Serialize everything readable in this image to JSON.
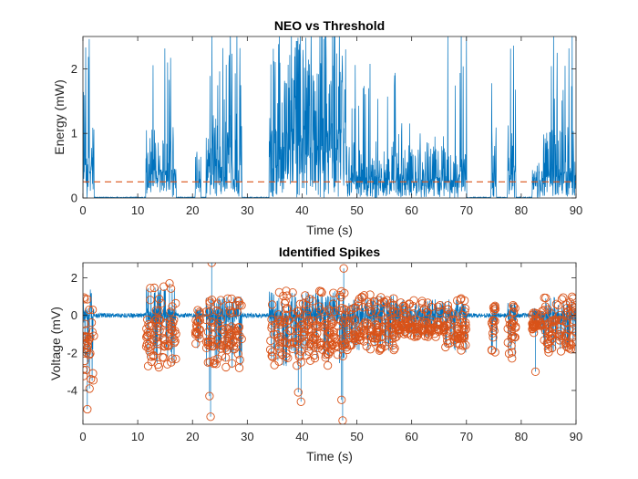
{
  "colors": {
    "signal": "#0072BD",
    "marker": "#D95319",
    "axis": "#262626"
  },
  "chart_data": [
    {
      "type": "line",
      "title": "NEO vs Threshold",
      "xlabel": "Time (s)",
      "ylabel": "Energy (mW)",
      "xlim": [
        0,
        90
      ],
      "ylim": [
        0,
        2.5
      ],
      "xticks": [
        0,
        10,
        20,
        30,
        40,
        50,
        60,
        70,
        80,
        90
      ],
      "xtick_labels": [
        "0",
        "10",
        "20",
        "30",
        "40",
        "50",
        "60",
        "70",
        "80",
        "90"
      ],
      "yticks": [
        0,
        1,
        2
      ],
      "ytick_labels": [
        "0",
        "1",
        "2"
      ],
      "grid": false,
      "threshold": {
        "y": 0.25,
        "style": "dashed"
      },
      "activity_segments": [
        {
          "start": 0,
          "end": 2,
          "peak": 2.5,
          "level": 0.6
        },
        {
          "start": 11.5,
          "end": 17,
          "peak": 2.5,
          "level": 0.5
        },
        {
          "start": 20.5,
          "end": 21.5,
          "peak": 0.7,
          "level": 0.3
        },
        {
          "start": 22.5,
          "end": 29,
          "peak": 2.5,
          "level": 0.6
        },
        {
          "start": 34,
          "end": 48,
          "peak": 2.5,
          "level": 1.2
        },
        {
          "start": 48,
          "end": 57,
          "peak": 1.9,
          "level": 0.4
        },
        {
          "start": 57,
          "end": 66,
          "peak": 1.1,
          "level": 0.35
        },
        {
          "start": 66,
          "end": 70,
          "peak": 2.5,
          "level": 0.35
        },
        {
          "start": 74.5,
          "end": 75.5,
          "peak": 2.5,
          "level": 0.5
        },
        {
          "start": 77.5,
          "end": 79,
          "peak": 2.5,
          "level": 0.7
        },
        {
          "start": 82,
          "end": 84,
          "peak": 0.4,
          "level": 0.25
        },
        {
          "start": 84,
          "end": 90,
          "peak": 2.5,
          "level": 0.5
        }
      ]
    },
    {
      "type": "scatter",
      "title": "Identified Spikes",
      "xlabel": "Time (s)",
      "ylabel": "Voltage (mV)",
      "xlim": [
        0,
        90
      ],
      "ylim": [
        -5.8,
        2.8
      ],
      "xticks": [
        0,
        10,
        20,
        30,
        40,
        50,
        60,
        70,
        80,
        90
      ],
      "xtick_labels": [
        "0",
        "10",
        "20",
        "30",
        "40",
        "50",
        "60",
        "70",
        "80",
        "90"
      ],
      "yticks": [
        -4,
        -2,
        0,
        2
      ],
      "ytick_labels": [
        "-4",
        "-2",
        "0",
        "2"
      ],
      "grid": false,
      "baseline": 0,
      "spike_segments": [
        {
          "start": 0,
          "end": 2,
          "up": 1.4,
          "down": -3.5
        },
        {
          "start": 11.5,
          "end": 17,
          "up": 1.6,
          "down": -2.8
        },
        {
          "start": 20.5,
          "end": 21.5,
          "up": 0.5,
          "down": -1.8
        },
        {
          "start": 22.5,
          "end": 29,
          "up": 1.0,
          "down": -2.8
        },
        {
          "start": 34,
          "end": 48,
          "up": 1.3,
          "down": -2.7
        },
        {
          "start": 48,
          "end": 57,
          "up": 1.1,
          "down": -1.9
        },
        {
          "start": 57,
          "end": 66,
          "up": 0.9,
          "down": -1.2
        },
        {
          "start": 66,
          "end": 70,
          "up": 0.9,
          "down": -2.0
        },
        {
          "start": 74.5,
          "end": 75.5,
          "up": 0.7,
          "down": -2.0
        },
        {
          "start": 77.5,
          "end": 79,
          "up": 0.7,
          "down": -2.3
        },
        {
          "start": 82,
          "end": 84,
          "up": 0.3,
          "down": -1.0
        },
        {
          "start": 84,
          "end": 90,
          "up": 1.0,
          "down": -2.0
        }
      ],
      "extreme_spikes": [
        {
          "x": 0.8,
          "y": -5.0
        },
        {
          "x": 23.1,
          "y": -4.3
        },
        {
          "x": 23.3,
          "y": -5.4
        },
        {
          "x": 23.5,
          "y": 2.8
        },
        {
          "x": 39.3,
          "y": -4.1
        },
        {
          "x": 39.8,
          "y": -4.6
        },
        {
          "x": 47.2,
          "y": -4.5
        },
        {
          "x": 47.4,
          "y": -5.6
        },
        {
          "x": 47.6,
          "y": 2.5
        },
        {
          "x": 82.6,
          "y": -3.0
        },
        {
          "x": 15.8,
          "y": 1.7
        },
        {
          "x": 1.2,
          "y": -3.9
        }
      ]
    }
  ]
}
